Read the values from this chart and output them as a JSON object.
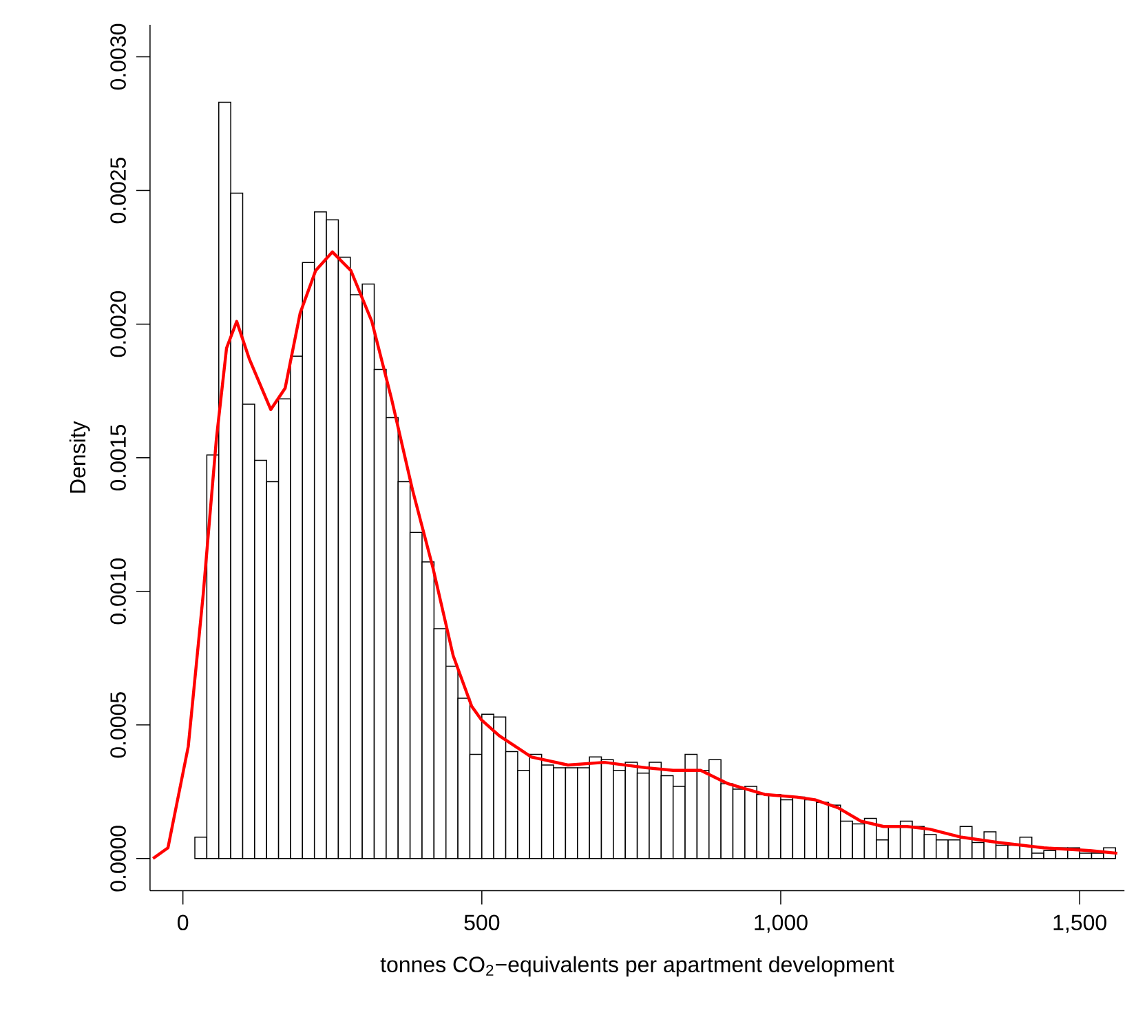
{
  "chart_data": {
    "type": "histogram",
    "xlabel": "tonnes CO$_{2}$−equivalents per apartment development",
    "ylabel": "Density",
    "bins": [
      20,
      40,
      60,
      80,
      100,
      120,
      140,
      160,
      180,
      200,
      220,
      240,
      260,
      280,
      300,
      320,
      340,
      360,
      380,
      400,
      420,
      440,
      460,
      480,
      500,
      520,
      540,
      560,
      580,
      600,
      620,
      640,
      660,
      680,
      700,
      720,
      740,
      760,
      780,
      800,
      820,
      840,
      860,
      880,
      900,
      920,
      940,
      960,
      980,
      1000,
      1020,
      1040,
      1060,
      1080,
      1100,
      1120,
      1140,
      1160,
      1180,
      1200,
      1220,
      1240,
      1260,
      1280,
      1300,
      1320,
      1340,
      1360,
      1380,
      1400,
      1420,
      1440,
      1460,
      1480,
      1500,
      1520,
      1540,
      1560
    ],
    "values": [
      8e-05,
      0.00151,
      0.00283,
      0.00249,
      0.0017,
      0.00149,
      0.00141,
      0.00172,
      0.00188,
      0.00223,
      0.00242,
      0.00239,
      0.00225,
      0.00211,
      0.00215,
      0.00183,
      0.00165,
      0.00141,
      0.00122,
      0.00111,
      0.00086,
      0.00072,
      0.0006,
      0.00039,
      0.00054,
      0.00053,
      0.0004,
      0.00033,
      0.00039,
      0.00035,
      0.00034,
      0.00034,
      0.00034,
      0.00038,
      0.00037,
      0.00033,
      0.00036,
      0.00032,
      0.00036,
      0.00031,
      0.00027,
      0.00039,
      0.00033,
      0.00037,
      0.00028,
      0.00026,
      0.00027,
      0.00024,
      0.00024,
      0.00022,
      0.00023,
      0.00022,
      0.00021,
      0.0002,
      0.00014,
      0.00013,
      0.00015,
      7e-05,
      0.00012,
      0.00014,
      0.00012,
      9e-05,
      7e-05,
      7e-05,
      0.00012,
      6e-05,
      0.0001,
      5e-05,
      5e-05,
      8e-05,
      2e-05,
      3e-05,
      4e-05,
      4e-05,
      2e-05,
      2e-05,
      4e-05
    ],
    "color": "#ffffff",
    "series": [
      {
        "type": "line",
        "color": "#ff0000",
        "x": [
          -50,
          -25,
          9,
          34,
          56,
          73,
          90,
          111,
          147,
          171,
          196,
          222,
          250,
          281,
          316,
          349,
          384,
          418,
          452,
          483,
          499,
          529,
          583,
          644,
          705,
          774,
          820,
          866,
          912,
          973,
          1027,
          1057,
          1096,
          1134,
          1172,
          1211,
          1249,
          1302,
          1364,
          1440,
          1517,
          1563
        ],
        "values": [
          0,
          4e-05,
          0.00042,
          0.00099,
          0.00157,
          0.00191,
          0.00201,
          0.00187,
          0.00168,
          0.00176,
          0.00204,
          0.0022,
          0.00227,
          0.0022,
          0.00201,
          0.00172,
          0.00138,
          0.00109,
          0.00076,
          0.00057,
          0.00052,
          0.00046,
          0.00038,
          0.00035,
          0.00036,
          0.00034,
          0.00033,
          0.00033,
          0.00028,
          0.00024,
          0.00023,
          0.00022,
          0.00019,
          0.00014,
          0.00012,
          0.00012,
          0.00011,
          8e-05,
          6e-05,
          4e-05,
          3e-05,
          2e-05
        ]
      }
    ],
    "xlim": [
      -55,
      1575
    ],
    "ylim": [
      -0.00012,
      0.00312
    ],
    "xticks": [
      0,
      500,
      {
        "value": 1000,
        "label": "1,000"
      },
      {
        "value": 1500,
        "label": "1,500"
      }
    ],
    "yticks": [
      {
        "value": 0,
        "label": "0.0000"
      },
      {
        "value": 0.0005,
        "label": "0.0005"
      },
      {
        "value": 0.001,
        "label": "0.0010"
      },
      {
        "value": 0.0015,
        "label": "0.0015"
      },
      {
        "value": 0.002,
        "label": "0.0020"
      },
      {
        "value": 0.0025,
        "label": "0.0025"
      },
      {
        "value": 0.003,
        "label": "0.0030"
      }
    ]
  }
}
